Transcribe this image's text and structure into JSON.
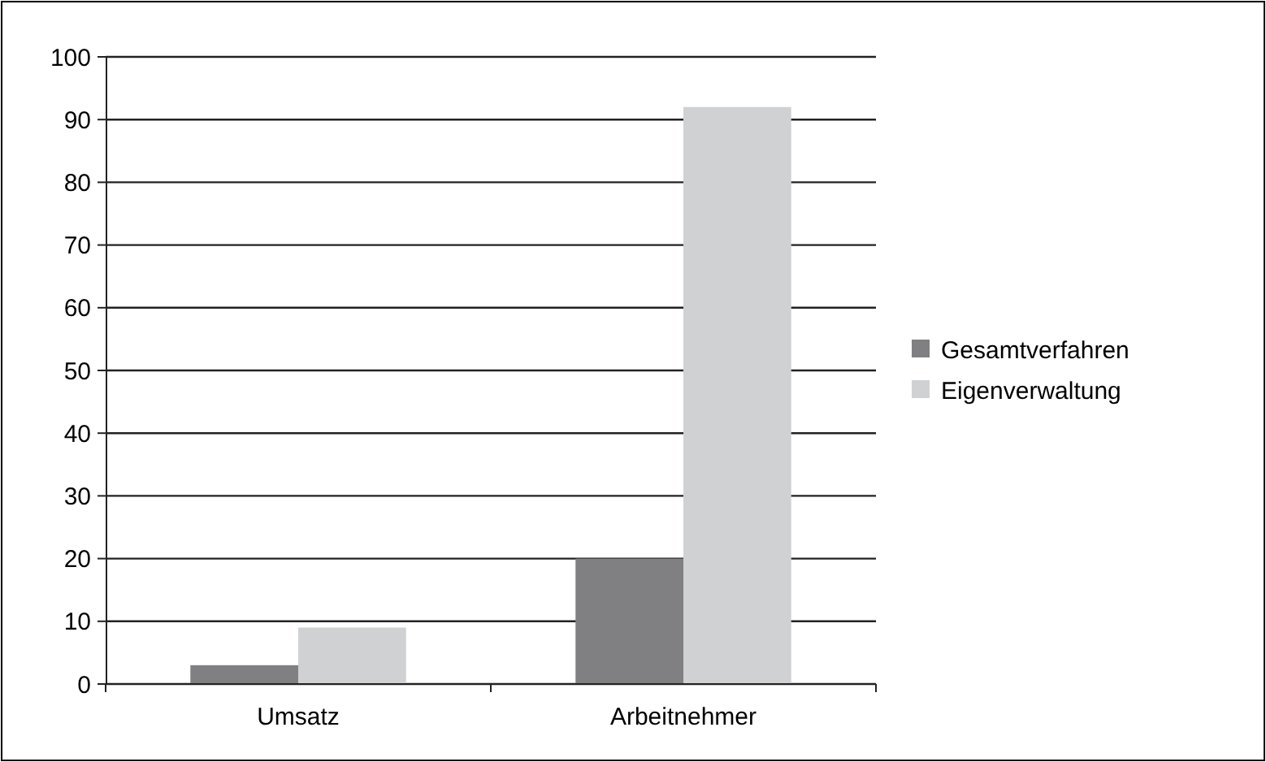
{
  "chart_data": {
    "type": "bar",
    "categories": [
      "Umsatz",
      "Arbeitnehmer"
    ],
    "series": [
      {
        "name": "Gesamtverfahren",
        "color": "#808083",
        "values": [
          3,
          20
        ]
      },
      {
        "name": "Eigenverwaltung",
        "color": "#d0d1d3",
        "values": [
          9,
          92
        ]
      }
    ],
    "ylim": [
      0,
      100
    ],
    "yticks": [
      0,
      10,
      20,
      30,
      40,
      50,
      60,
      70,
      80,
      90,
      100
    ],
    "grid": "y",
    "legend": "right"
  }
}
